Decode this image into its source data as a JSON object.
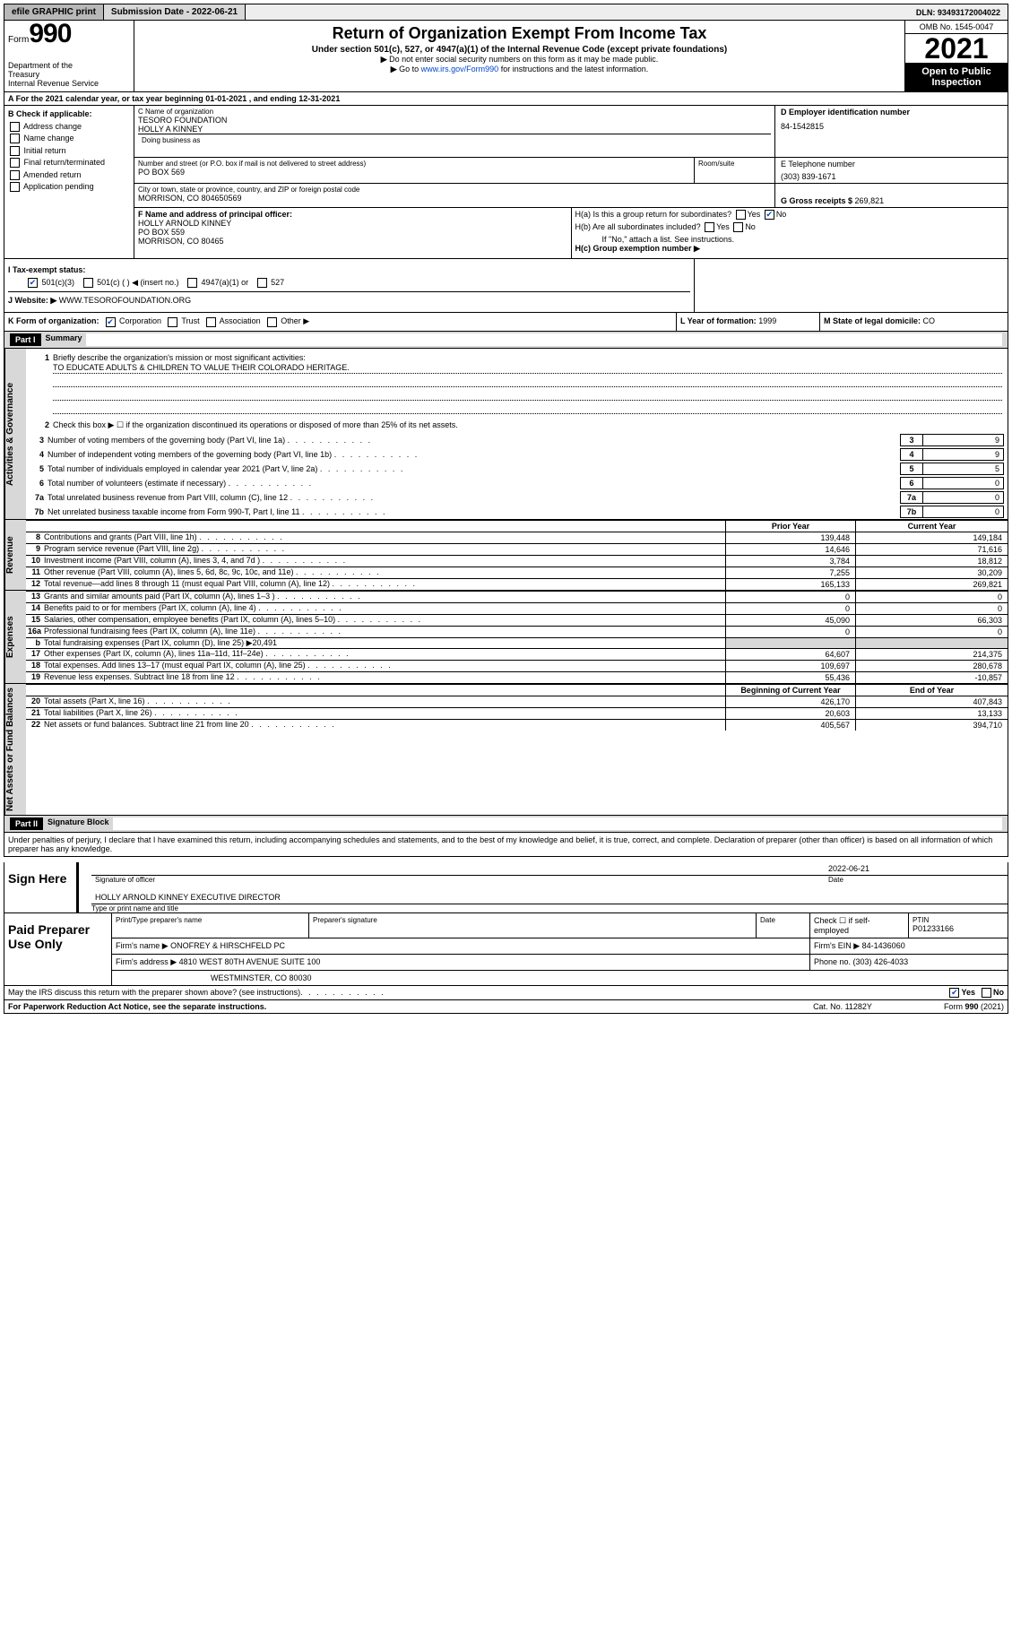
{
  "topbar": {
    "efile": "efile GRAPHIC print",
    "sub_label": "Submission Date - ",
    "sub_date": "2022-06-21",
    "dln_label": "DLN: ",
    "dln": "93493172004022"
  },
  "header": {
    "form_word": "Form",
    "form_num": "990",
    "dept1": "Department of the",
    "dept2": "Treasury",
    "dept3": "Internal Revenue Service",
    "title": "Return of Organization Exempt From Income Tax",
    "sub1": "Under section 501(c), 527, or 4947(a)(1) of the Internal Revenue Code (except private foundations)",
    "sub2": "Do not enter social security numbers on this form as it may be made public.",
    "sub3_pre": "Go to ",
    "sub3_link": "www.irs.gov/Form990",
    "sub3_post": " for instructions and the latest information.",
    "omb": "OMB No. 1545-0047",
    "year": "2021",
    "open1": "Open to Public",
    "open2": "Inspection"
  },
  "row_a": {
    "text": "A For the 2021 calendar year, or tax year beginning 01-01-2021   , and ending 12-31-2021"
  },
  "col_b": {
    "hdr": "B Check if applicable:",
    "addr": "Address change",
    "name": "Name change",
    "initial": "Initial return",
    "final": "Final return/terminated",
    "amended": "Amended return",
    "app": "Application pending"
  },
  "c": {
    "label": "C Name of organization",
    "name1": "TESORO FOUNDATION",
    "name2": "HOLLY A KINNEY",
    "dba_label": "Doing business as",
    "street_label": "Number and street (or P.O. box if mail is not delivered to street address)",
    "street": "PO BOX 569",
    "room_label": "Room/suite",
    "city_label": "City or town, state or province, country, and ZIP or foreign postal code",
    "city": "MORRISON, CO  804650569"
  },
  "d": {
    "label": "D Employer identification number",
    "val": "84-1542815"
  },
  "e": {
    "label": "E Telephone number",
    "val": "(303) 839-1671"
  },
  "g": {
    "label": "G Gross receipts $ ",
    "val": "269,821"
  },
  "f": {
    "label": "F Name and address of principal officer:",
    "name": "HOLLY ARNOLD KINNEY",
    "street": "PO BOX 559",
    "city": "MORRISON, CO  80465"
  },
  "h": {
    "ha": "H(a)  Is this a group return for subordinates?",
    "hb": "H(b)  Are all subordinates included?",
    "hb_note": "If \"No,\" attach a list. See instructions.",
    "hc": "H(c)  Group exemption number ▶",
    "yes": "Yes",
    "no": "No"
  },
  "i": {
    "label": "I   Tax-exempt status:",
    "c501c3": "501(c)(3)",
    "c501c": "501(c) (  ) ◀ (insert no.)",
    "c4947": "4947(a)(1) or",
    "c527": "527"
  },
  "j": {
    "label": "J   Website: ▶",
    "val": "  WWW.TESOROFOUNDATION.ORG"
  },
  "k": {
    "label": "K Form of organization:",
    "corp": "Corporation",
    "trust": "Trust",
    "assoc": "Association",
    "other": "Other ▶"
  },
  "l": {
    "label": "L Year of formation: ",
    "val": "1999"
  },
  "m": {
    "label": "M State of legal domicile: ",
    "val": "CO"
  },
  "part1": {
    "hdr": "Part I",
    "title": "Summary"
  },
  "sections": {
    "gov": "Activities & Governance",
    "rev": "Revenue",
    "exp": "Expenses",
    "net": "Net Assets or Fund Balances"
  },
  "q1": {
    "label": "Briefly describe the organization's mission or most significant activities:",
    "mission": "TO EDUCATE ADULTS & CHILDREN TO VALUE THEIR COLORADO HERITAGE."
  },
  "q2": "Check this box ▶ ☐  if the organization discontinued its operations or disposed of more than 25% of its net assets.",
  "lines_simple": [
    {
      "n": "3",
      "t": "Number of voting members of the governing body (Part VI, line 1a)",
      "v": "9"
    },
    {
      "n": "4",
      "t": "Number of independent voting members of the governing body (Part VI, line 1b)",
      "v": "9"
    },
    {
      "n": "5",
      "t": "Total number of individuals employed in calendar year 2021 (Part V, line 2a)",
      "v": "5"
    },
    {
      "n": "6",
      "t": "Total number of volunteers (estimate if necessary)",
      "v": "0"
    },
    {
      "n": "7a",
      "t": "Total unrelated business revenue from Part VIII, column (C), line 12",
      "v": "0"
    },
    {
      "n": "7b",
      "t": "Net unrelated business taxable income from Form 990-T, Part I, line 11",
      "v": "0"
    }
  ],
  "col_hdrs": {
    "prior": "Prior Year",
    "current": "Current Year",
    "bcy": "Beginning of Current Year",
    "eoy": "End of Year"
  },
  "rev_lines": [
    {
      "n": "8",
      "t": "Contributions and grants (Part VIII, line 1h)",
      "py": "139,448",
      "cy": "149,184"
    },
    {
      "n": "9",
      "t": "Program service revenue (Part VIII, line 2g)",
      "py": "14,646",
      "cy": "71,616"
    },
    {
      "n": "10",
      "t": "Investment income (Part VIII, column (A), lines 3, 4, and 7d )",
      "py": "3,784",
      "cy": "18,812"
    },
    {
      "n": "11",
      "t": "Other revenue (Part VIII, column (A), lines 5, 6d, 8c, 9c, 10c, and 11e)",
      "py": "7,255",
      "cy": "30,209"
    },
    {
      "n": "12",
      "t": "Total revenue—add lines 8 through 11 (must equal Part VIII, column (A), line 12)",
      "py": "165,133",
      "cy": "269,821"
    }
  ],
  "exp_lines": [
    {
      "n": "13",
      "t": "Grants and similar amounts paid (Part IX, column (A), lines 1–3 )",
      "py": "0",
      "cy": "0"
    },
    {
      "n": "14",
      "t": "Benefits paid to or for members (Part IX, column (A), line 4)",
      "py": "0",
      "cy": "0"
    },
    {
      "n": "15",
      "t": "Salaries, other compensation, employee benefits (Part IX, column (A), lines 5–10)",
      "py": "45,090",
      "cy": "66,303"
    },
    {
      "n": "16a",
      "t": "Professional fundraising fees (Part IX, column (A), line 11e)",
      "py": "0",
      "cy": "0"
    }
  ],
  "line16b": {
    "n": "b",
    "t": "Total fundraising expenses (Part IX, column (D), line 25) ▶20,491"
  },
  "exp_lines2": [
    {
      "n": "17",
      "t": "Other expenses (Part IX, column (A), lines 11a–11d, 11f–24e)",
      "py": "64,607",
      "cy": "214,375"
    },
    {
      "n": "18",
      "t": "Total expenses. Add lines 13–17 (must equal Part IX, column (A), line 25)",
      "py": "109,697",
      "cy": "280,678"
    },
    {
      "n": "19",
      "t": "Revenue less expenses. Subtract line 18 from line 12",
      "py": "55,436",
      "cy": "-10,857"
    }
  ],
  "net_lines": [
    {
      "n": "20",
      "t": "Total assets (Part X, line 16)",
      "py": "426,170",
      "cy": "407,843"
    },
    {
      "n": "21",
      "t": "Total liabilities (Part X, line 26)",
      "py": "20,603",
      "cy": "13,133"
    },
    {
      "n": "22",
      "t": "Net assets or fund balances. Subtract line 21 from line 20",
      "py": "405,567",
      "cy": "394,710"
    }
  ],
  "part2": {
    "hdr": "Part II",
    "title": "Signature Block"
  },
  "penalties": "Under penalties of perjury, I declare that I have examined this return, including accompanying schedules and statements, and to the best of my knowledge and belief, it is true, correct, and complete. Declaration of preparer (other than officer) is based on all information of which preparer has any knowledge.",
  "sign": {
    "here": "Sign Here",
    "sig_label": "Signature of officer",
    "date_label": "Date",
    "date": "2022-06-21",
    "name": "HOLLY ARNOLD KINNEY  EXECUTIVE DIRECTOR",
    "name_label": "Type or print name and title"
  },
  "paid": {
    "title": "Paid Preparer Use Only",
    "h1": "Print/Type preparer's name",
    "h2": "Preparer's signature",
    "h3": "Date",
    "h4_pre": "Check ☐  if self-employed",
    "h5": "PTIN",
    "ptin": "P01233166",
    "firm_label": "Firm's name      ▶",
    "firm": "ONOFREY & HIRSCHFELD PC",
    "ein_label": "Firm's EIN ▶",
    "ein": "84-1436060",
    "addr_label": "Firm's address ▶",
    "addr1": "4810 WEST 80TH AVENUE SUITE 100",
    "addr2": "WESTMINSTER, CO  80030",
    "phone_label": "Phone no. ",
    "phone": "(303) 426-4033"
  },
  "discuss": "May the IRS discuss this return with the preparer shown above? (see instructions)",
  "footer": {
    "pra": "For Paperwork Reduction Act Notice, see the separate instructions.",
    "cat": "Cat. No. 11282Y",
    "form": "Form 990 (2021)"
  }
}
